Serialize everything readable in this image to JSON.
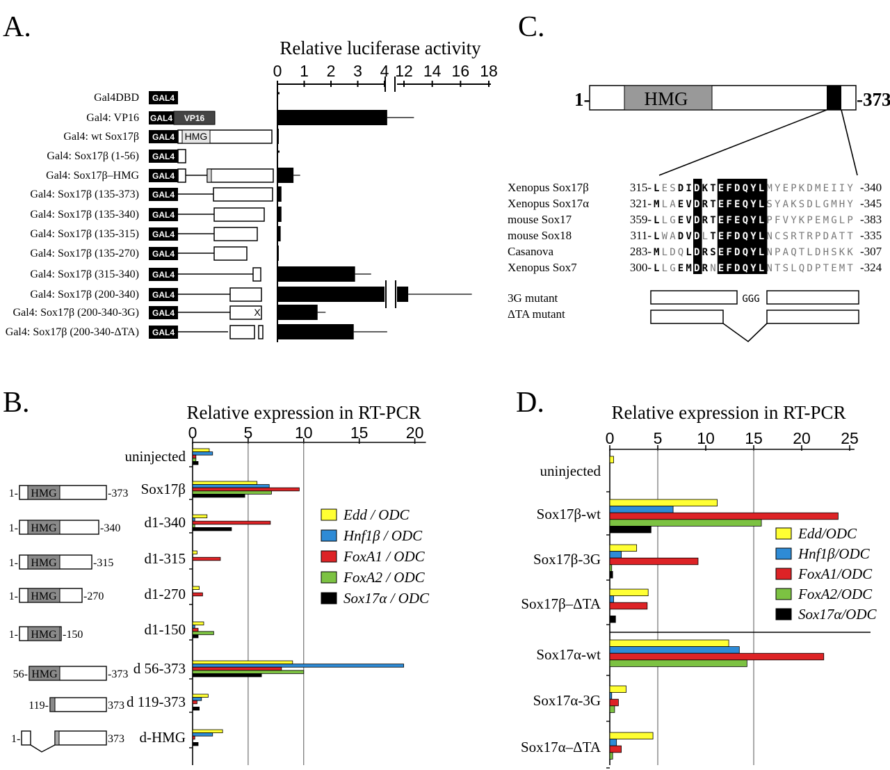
{
  "panels": {
    "a": "A.",
    "b": "B.",
    "c": "C.",
    "d": "D."
  },
  "chart_data": [
    {
      "id": "A",
      "type": "bar",
      "orientation": "horizontal",
      "title": "Relative luciferase activity",
      "axis_ticks_low": [
        "0",
        "1",
        "2",
        "3",
        "4"
      ],
      "axis_ticks_high": [
        "12",
        "14",
        "16",
        "18"
      ],
      "xlim_low": [
        0,
        4.2
      ],
      "xlim_high": [
        11,
        18
      ],
      "gal4_label": "GAL4",
      "vp16_label": "VP16",
      "hmg_label": "HMG",
      "x_mark": "X",
      "constructs": [
        {
          "label": "Gal4DBD",
          "value": 0.0,
          "err": 0
        },
        {
          "label": "Gal4: VP16",
          "value": 4.1,
          "err": 1.0
        },
        {
          "label": "Gal4: wt Sox17β",
          "value": 0.05,
          "err": 0
        },
        {
          "label": "Gal4: Sox17β (1-56)",
          "value": 0.0,
          "err": 0
        },
        {
          "label": "Gal4: Sox17β–HMG",
          "value": 0.6,
          "err": 0.25
        },
        {
          "label": "Gal4: Sox17β (135-373)",
          "value": 0.15,
          "err": 0
        },
        {
          "label": "Gal4: Sox17β (135-340)",
          "value": 0.15,
          "err": 0
        },
        {
          "label": "Gal4: Sox17β (135-315)",
          "value": 0.12,
          "err": 0
        },
        {
          "label": "Gal4: Sox17β (135-270)",
          "value": 0.05,
          "err": 0
        },
        {
          "label": "Gal4: Sox17β (315-340)",
          "value": 2.9,
          "err": 0.6
        },
        {
          "label": "Gal4: Sox17β (200-340)",
          "value": 12.3,
          "err": 4.5
        },
        {
          "label": "Gal4: Sox17β (200-340-3G)",
          "value": 1.5,
          "err": 0.3
        },
        {
          "label": "Gal4: Sox17β (200-340-ΔTA)",
          "value": 2.85,
          "err": 1.25
        }
      ]
    },
    {
      "id": "B",
      "type": "bar",
      "orientation": "horizontal",
      "title": "Relative expression in RT-PCR",
      "ticks": [
        "0",
        "5",
        "10",
        "15",
        "20"
      ],
      "xlim": [
        0,
        21
      ],
      "gridlines": [
        5,
        10
      ],
      "series_names": [
        "Edd / ODC",
        "Hnf1β / ODC",
        "FoxA1 / ODC",
        "FoxA2 / ODC",
        "Sox17α / ODC"
      ],
      "series_colors": [
        "#ffff33",
        "#2e8bd6",
        "#dd2326",
        "#7cc242",
        "#000000"
      ],
      "rows": [
        {
          "label": "uninjected",
          "diagram": "",
          "values": [
            1.5,
            1.8,
            0.3,
            0.3,
            0.5
          ]
        },
        {
          "label": "Sox17β",
          "diagram": "1-|HMG|-373",
          "values": [
            5.8,
            6.9,
            9.6,
            7.1,
            4.7
          ]
        },
        {
          "label": "d1-340",
          "diagram": "1-|HMG|-340",
          "values": [
            1.3,
            0.2,
            7.0,
            0.2,
            3.5
          ]
        },
        {
          "label": "d1-315",
          "diagram": "1-|HMG|-315",
          "values": [
            0.4,
            0,
            2.5,
            0,
            0
          ]
        },
        {
          "label": "d1-270",
          "diagram": "1-|HMG|-270",
          "values": [
            0.6,
            0,
            0.9,
            0,
            0
          ]
        },
        {
          "label": "d1-150",
          "diagram": "1-|HMG|-150",
          "values": [
            1.0,
            0.2,
            0.5,
            1.9,
            0.5
          ]
        },
        {
          "label": "d 56-373",
          "diagram": "56-|HMG|-373",
          "values": [
            9.0,
            19.0,
            8.0,
            10.0,
            6.2
          ]
        },
        {
          "label": "d 119-373",
          "diagram": "119-||373",
          "values": [
            1.4,
            0.8,
            0.4,
            0,
            0.6
          ]
        },
        {
          "label": "d-HMG",
          "diagram": "1-||373",
          "values": [
            2.7,
            1.8,
            0.2,
            0,
            0.5
          ]
        }
      ]
    },
    {
      "id": "D",
      "type": "bar",
      "orientation": "horizontal",
      "title": "Relative expression in RT-PCR",
      "ticks": [
        "0",
        "5",
        "10",
        "15",
        "20",
        "25"
      ],
      "xlim": [
        0,
        25.5
      ],
      "gridlines": [
        5,
        15
      ],
      "series_names": [
        "Edd/ODC",
        "Hnf1β/ODC",
        "FoxA1/ODC",
        "FoxA2/ODC",
        "Sox17α/ODC"
      ],
      "series_colors": [
        "#ffff33",
        "#2e8bd6",
        "#dd2326",
        "#7cc242",
        "#000000"
      ],
      "rows": [
        {
          "label": "uninjected",
          "values": [
            0.4,
            0,
            0,
            0,
            0
          ]
        },
        {
          "label": "Sox17β-wt",
          "values": [
            11.2,
            6.6,
            23.8,
            15.8,
            4.3
          ]
        },
        {
          "label": "Sox17β-3G",
          "values": [
            2.8,
            1.2,
            9.2,
            0.2,
            0.3
          ]
        },
        {
          "label": "Sox17β–ΔTA",
          "values": [
            4.0,
            0.4,
            3.9,
            0,
            0.6
          ]
        },
        {
          "label": "Sox17α-wt",
          "values": [
            12.4,
            13.5,
            22.3,
            14.3,
            0
          ]
        },
        {
          "label": "Sox17α-3G",
          "values": [
            1.7,
            0.2,
            0.9,
            0.5,
            0
          ]
        },
        {
          "label": "Sox17α–ΔTA",
          "values": [
            4.5,
            0.7,
            1.2,
            0.3,
            0
          ]
        }
      ]
    }
  ],
  "panel_c": {
    "protein_start": "1-",
    "protein_end": "-373",
    "hmg": "HMG",
    "alignment": [
      {
        "name": "Xenopus Sox17β",
        "start": "315-",
        "seq": "LESDIDKTEFDQYLMYEPKDMEIIY",
        "end": "-340"
      },
      {
        "name": "Xenopus Sox17α",
        "start": "321-",
        "seq": "MLAEVDRTEFEQYLSYAKSDLGMHY",
        "end": "-345"
      },
      {
        "name": "mouse Sox17",
        "start": "359-",
        "seq": "LLGEVDRTEFEQYLPFVYKPEMGLP",
        "end": "-383"
      },
      {
        "name": "mouse Sox18",
        "start": "311-",
        "seq": "LWADVDLTEFDQYLNCSRTRPDATT",
        "end": "-335"
      },
      {
        "name": "Casanova",
        "start": "283-",
        "seq": "MLDQLDRSEFDQYLNPAQTLDHSKK",
        "end": "-307"
      },
      {
        "name": "Xenopus Sox7",
        "start": "300-",
        "seq": "LLGEMDRNEFDQYLNTSLQDPTEMT",
        "end": "-324"
      }
    ],
    "mutant_3g": "3G mutant",
    "mutant_3g_insert": "GGG",
    "mutant_dta": "ΔTA mutant"
  }
}
